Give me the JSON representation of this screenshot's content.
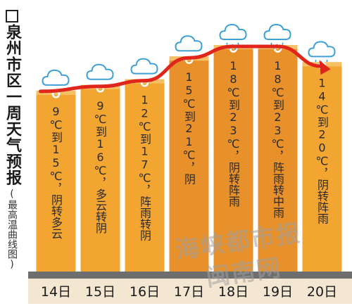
{
  "title": "泉州市区一周天气预报",
  "subtitle": "(最高温曲线图)",
  "watermark": {
    "line1": "海峡都市报",
    "line2": "闽南网"
  },
  "colors": {
    "bar": "#F2A531",
    "bar_tall": "#E8902A",
    "bar_cap": "#F6C066",
    "arrow": "#E0251B",
    "axis_band": "#6E6E6E",
    "axis_label_bg": "#F3E7D2",
    "text": "#2a2a2a"
  },
  "chart_data": {
    "type": "bar",
    "categories": [
      "14日",
      "15日",
      "16日",
      "17日",
      "18日",
      "19日",
      "20日"
    ],
    "series": [
      {
        "values": [
          15,
          16,
          17,
          21,
          23,
          23,
          20
        ]
      }
    ],
    "low_values": [
      9,
      9,
      12,
      15,
      18,
      18,
      14
    ],
    "labels": [
      "9℃到15℃，阴转多云",
      "9℃到16℃，多云转阴",
      "12℃到17℃，阵雨转阴",
      "15℃到21℃，阴",
      "18℃到23℃，阴转阵雨",
      "18℃到23℃，阵雨转中雨",
      "14℃到20℃，阴转阵雨"
    ],
    "weather_icons": [
      "cloud-icon",
      "cloud-icon",
      "cloud-icon",
      "cloud-icon",
      "rain-cloud-icon",
      "rain-cloud-icon",
      "rain-cloud-icon"
    ],
    "trend_line": "high-temperature-curve-arrow",
    "ylim": [
      0,
      25
    ],
    "grid": false,
    "legend": "none"
  }
}
